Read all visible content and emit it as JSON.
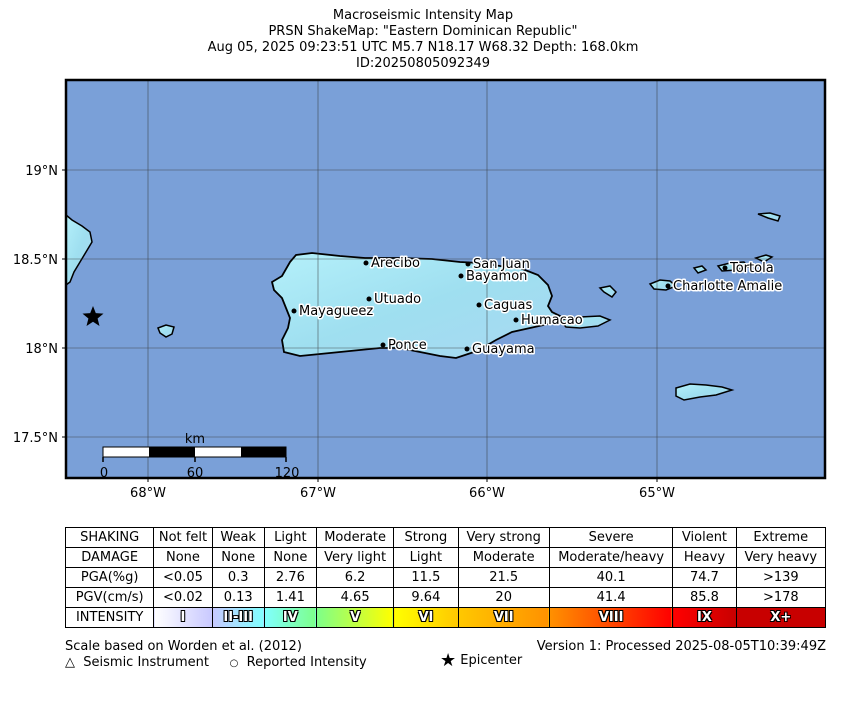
{
  "title": {
    "line1": "Macroseismic Intensity Map",
    "line2": "PRSN ShakeMap: \"Eastern Dominican Republic\"",
    "line3": "Aug 05, 2025 09:23:51 UTC M5.7 N18.17 W68.32 Depth: 168.0km",
    "line4": "ID:20250805092349"
  },
  "map": {
    "lat_labels": [
      "19°N",
      "18.5°N",
      "18°N",
      "17.5°N"
    ],
    "lon_labels": [
      "68°W",
      "67°W",
      "66°W",
      "65°W"
    ],
    "cities": [
      {
        "name": "Arecibo"
      },
      {
        "name": "San Juan"
      },
      {
        "name": "Bayamon"
      },
      {
        "name": "Utuado"
      },
      {
        "name": "Caguas"
      },
      {
        "name": "Mayagueez"
      },
      {
        "name": "Humacao"
      },
      {
        "name": "Ponce"
      },
      {
        "name": "Guayama"
      },
      {
        "name": "Tortola"
      },
      {
        "name": "Charlotte Amalie"
      }
    ],
    "scalebar": {
      "unit": "km",
      "labels": [
        "0",
        "60",
        "120"
      ]
    },
    "epicenter_lat": 18.17,
    "epicenter_lon": -68.32,
    "colors": {
      "ocean": "#7aa0d8",
      "land": "#a8e8f4"
    }
  },
  "legend": {
    "rows": [
      {
        "label": "SHAKING",
        "cells": [
          "Not felt",
          "Weak",
          "Light",
          "Moderate",
          "Strong",
          "Very strong",
          "Severe",
          "Violent",
          "Extreme"
        ]
      },
      {
        "label": "DAMAGE",
        "cells": [
          "None",
          "None",
          "None",
          "Very light",
          "Light",
          "Moderate",
          "Moderate/heavy",
          "Heavy",
          "Very heavy"
        ]
      },
      {
        "label": "PGA(%g)",
        "cells": [
          "<0.05",
          "0.3",
          "2.76",
          "6.2",
          "11.5",
          "21.5",
          "40.1",
          "74.7",
          ">139"
        ]
      },
      {
        "label": "PGV(cm/s)",
        "cells": [
          "<0.02",
          "0.13",
          "1.41",
          "4.65",
          "9.64",
          "20",
          "41.4",
          "85.8",
          ">178"
        ]
      }
    ],
    "intensity": {
      "label": "INTENSITY",
      "cells": [
        "I",
        "II-III",
        "IV",
        "V",
        "VI",
        "VII",
        "VIII",
        "IX",
        "X+"
      ]
    },
    "intensity_colors": [
      "#ffffff",
      "#c8c8ff",
      "#80ffff",
      "#7dff8a",
      "#ffff00",
      "#ffc800",
      "#ff9100",
      "#ff0000",
      "#c80000"
    ]
  },
  "footer": {
    "scale_note": "Scale based on Worden et al. (2012)",
    "version": "Version 1: Processed 2025-08-05T10:39:49Z",
    "instrument_label": "Seismic Instrument",
    "reported_label": "Reported Intensity",
    "epicenter_label": "Epicenter"
  }
}
